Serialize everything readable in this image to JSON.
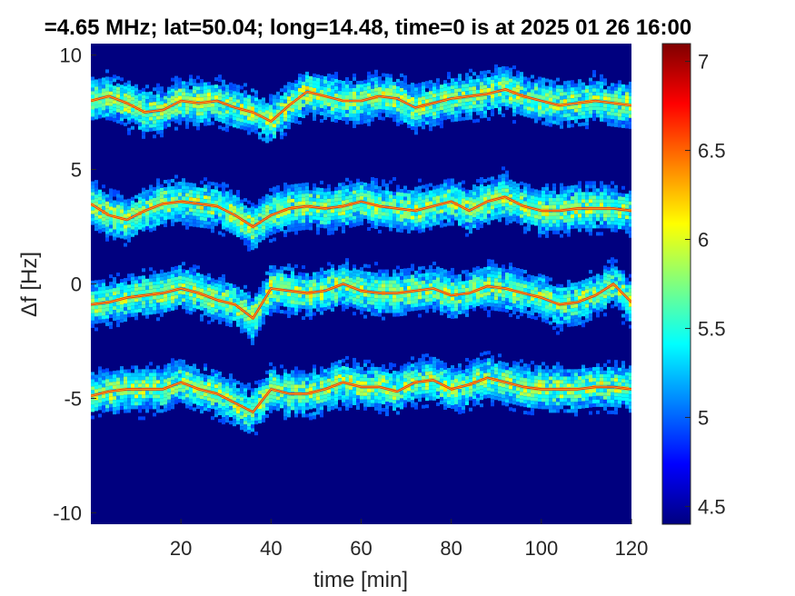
{
  "chart_data": {
    "type": "heatmap",
    "title": "=4.65 MHz;  lat=50.04; long=14.48, time=0 is at 2025 01 26 16:00",
    "xlabel": "time [min]",
    "ylabel": "Δf [Hz]",
    "xlim": [
      0,
      120
    ],
    "ylim": [
      -10.5,
      10.5
    ],
    "x_ticks": [
      20,
      40,
      60,
      80,
      100,
      120
    ],
    "y_ticks": [
      10,
      5,
      0,
      -5,
      -10
    ],
    "colorbar": {
      "colormap": "jet",
      "range": [
        4.4,
        7.1
      ],
      "ticks": [
        4.5,
        5,
        5.5,
        6,
        6.5,
        7
      ]
    },
    "series": [
      {
        "center_offset_hz": 8,
        "x": [
          0,
          4,
          8,
          12,
          16,
          20,
          24,
          28,
          32,
          36,
          40,
          44,
          48,
          52,
          56,
          60,
          64,
          68,
          72,
          76,
          80,
          84,
          88,
          92,
          96,
          100,
          104,
          108,
          112,
          116,
          120
        ],
        "y": [
          8.0,
          8.2,
          7.9,
          7.5,
          7.6,
          8.0,
          7.9,
          8.0,
          7.7,
          7.5,
          7.1,
          7.8,
          8.4,
          8.2,
          8.0,
          8.0,
          8.2,
          8.1,
          7.7,
          7.9,
          8.1,
          8.2,
          8.3,
          8.5,
          8.2,
          8.0,
          7.8,
          7.9,
          8.0,
          7.9,
          7.8
        ]
      },
      {
        "center_offset_hz": 3.5,
        "x": [
          0,
          4,
          8,
          12,
          16,
          20,
          24,
          28,
          32,
          36,
          40,
          44,
          48,
          52,
          56,
          60,
          64,
          68,
          72,
          76,
          80,
          84,
          88,
          92,
          96,
          100,
          104,
          108,
          112,
          116,
          120
        ],
        "y": [
          3.5,
          3.0,
          2.8,
          3.2,
          3.5,
          3.6,
          3.5,
          3.4,
          3.0,
          2.5,
          3.0,
          3.3,
          3.4,
          3.3,
          3.4,
          3.6,
          3.4,
          3.3,
          3.2,
          3.4,
          3.6,
          3.2,
          3.6,
          3.8,
          3.4,
          3.2,
          3.2,
          3.3,
          3.3,
          3.3,
          3.2
        ]
      },
      {
        "center_offset_hz": -0.5,
        "x": [
          0,
          4,
          8,
          12,
          16,
          20,
          24,
          28,
          32,
          36,
          40,
          44,
          48,
          52,
          56,
          60,
          64,
          68,
          72,
          76,
          80,
          84,
          88,
          92,
          96,
          100,
          104,
          108,
          112,
          116,
          120
        ],
        "y": [
          -0.9,
          -0.8,
          -0.6,
          -0.5,
          -0.4,
          -0.2,
          -0.4,
          -0.7,
          -0.9,
          -1.5,
          -0.2,
          -0.3,
          -0.4,
          -0.3,
          0.0,
          -0.3,
          -0.4,
          -0.4,
          -0.3,
          -0.2,
          -0.5,
          -0.4,
          -0.1,
          -0.2,
          -0.4,
          -0.6,
          -0.9,
          -0.8,
          -0.5,
          0.0,
          -0.8
        ]
      },
      {
        "center_offset_hz": -4.8,
        "x": [
          0,
          4,
          8,
          12,
          16,
          20,
          24,
          28,
          32,
          36,
          40,
          44,
          48,
          52,
          56,
          60,
          64,
          68,
          72,
          76,
          80,
          84,
          88,
          92,
          96,
          100,
          104,
          108,
          112,
          116,
          120
        ],
        "y": [
          -4.9,
          -4.7,
          -4.6,
          -4.6,
          -4.6,
          -4.3,
          -4.6,
          -4.8,
          -5.2,
          -5.6,
          -4.6,
          -4.8,
          -4.8,
          -4.6,
          -4.3,
          -4.5,
          -4.5,
          -4.7,
          -4.3,
          -4.2,
          -4.6,
          -4.4,
          -4.1,
          -4.3,
          -4.5,
          -4.6,
          -4.6,
          -4.6,
          -4.5,
          -4.5,
          -4.6
        ]
      }
    ]
  }
}
